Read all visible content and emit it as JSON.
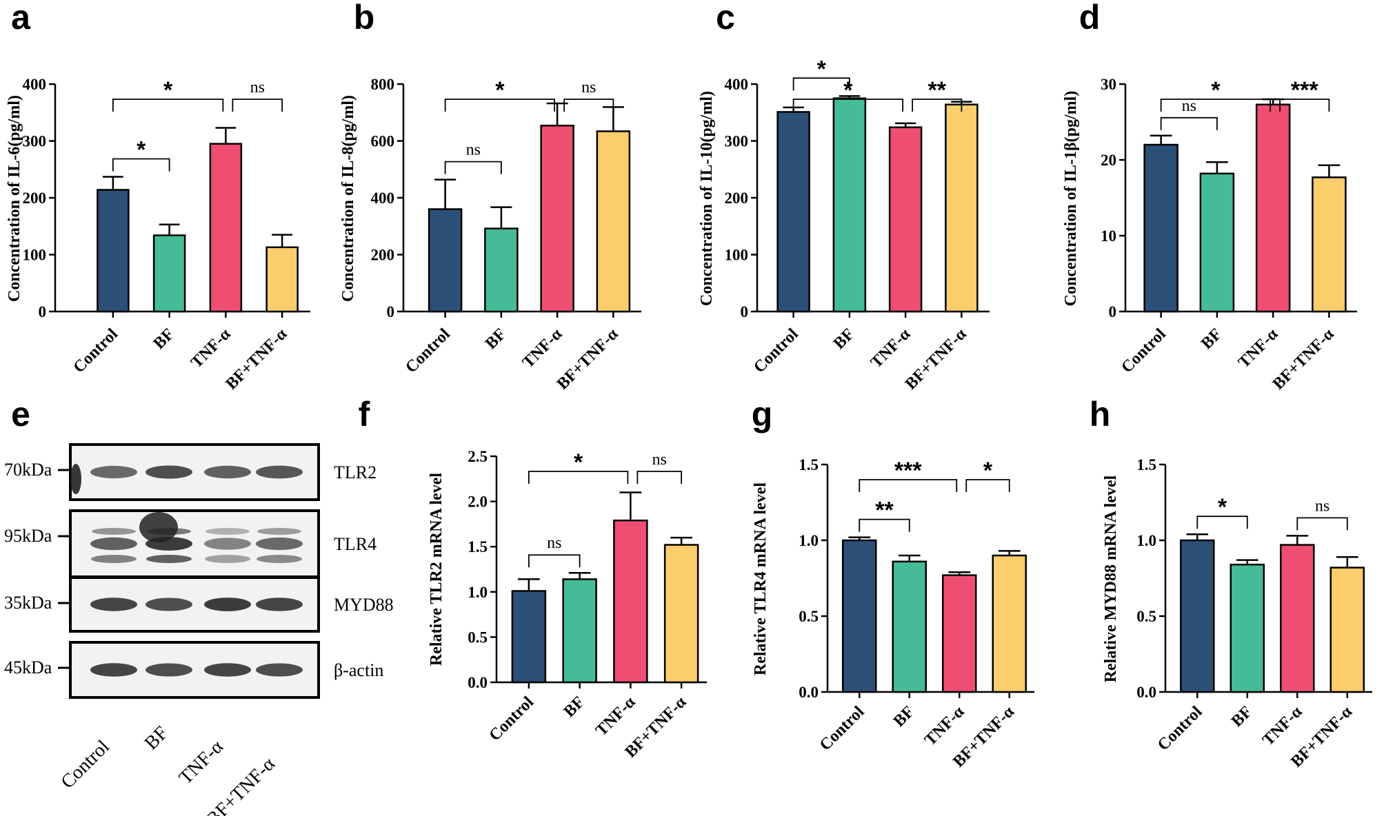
{
  "colors": {
    "Control": "#2c5078",
    "BF": "#45bc97",
    "TNF-α": "#ee4e72",
    "BF+TNF-α": "#fccd6b",
    "axis": "#000000"
  },
  "chart_data": [
    {
      "panel": "a",
      "type": "bar",
      "categories": [
        "Control",
        "BF",
        "TNF-α",
        "BF+TNF-α"
      ],
      "values": [
        214,
        134,
        295,
        113
      ],
      "errors": [
        23,
        19,
        28,
        22
      ],
      "ylabel": "Concentration of IL-6(pg/ml)",
      "ylim": [
        0,
        400
      ],
      "yticks": [
        "0",
        "100",
        "200",
        "300",
        "400"
      ],
      "significance": [
        {
          "from": 0,
          "to": 1,
          "label": "*",
          "level": 0
        },
        {
          "from": 0,
          "to": 2,
          "label": "*",
          "level": 1
        },
        {
          "from": 2,
          "to": 3,
          "label": "ns",
          "level": 1
        }
      ]
    },
    {
      "panel": "b",
      "type": "bar",
      "categories": [
        "Control",
        "BF",
        "TNF-α",
        "BF+TNF-α"
      ],
      "values": [
        360,
        292,
        654,
        634
      ],
      "errors": [
        104,
        75,
        78,
        85
      ],
      "ylabel": "Concentration of IL-8(pg/ml)",
      "ylim": [
        0,
        800
      ],
      "yticks": [
        "0",
        "200",
        "400",
        "600",
        "800"
      ],
      "significance": [
        {
          "from": 0,
          "to": 1,
          "label": "ns",
          "level": 0
        },
        {
          "from": 0,
          "to": 2,
          "label": "*",
          "level": 1
        },
        {
          "from": 2,
          "to": 3,
          "label": "ns",
          "level": 1
        }
      ]
    },
    {
      "panel": "c",
      "type": "bar",
      "categories": [
        "Control",
        "BF",
        "TNF-α",
        "BF+TNF-α"
      ],
      "values": [
        351,
        375,
        324,
        364
      ],
      "errors": [
        8,
        4,
        7,
        5
      ],
      "ylabel": "Concentration of IL-10(pg/ml)",
      "ylim": [
        0,
        400
      ],
      "yticks": [
        "0",
        "100",
        "200",
        "300",
        "400"
      ],
      "significance": [
        {
          "from": 0,
          "to": 1,
          "label": "*",
          "level": 0
        },
        {
          "from": 0,
          "to": 2,
          "label": "*",
          "level": 1
        },
        {
          "from": 2,
          "to": 3,
          "label": "**",
          "level": 1
        }
      ]
    },
    {
      "panel": "d",
      "type": "bar",
      "categories": [
        "Control",
        "BF",
        "TNF-α",
        "BF+TNF-α"
      ],
      "values": [
        22.0,
        18.2,
        27.3,
        17.7
      ],
      "errors": [
        1.2,
        1.5,
        0.7,
        1.6
      ],
      "ylabel": "Concentration of IL-1β(pg/ml)",
      "ylim": [
        0,
        30
      ],
      "yticks": [
        "0",
        "10",
        "20",
        "30"
      ],
      "significance": [
        {
          "from": 0,
          "to": 1,
          "label": "ns",
          "level": 0
        },
        {
          "from": 0,
          "to": 2,
          "label": "*",
          "level": 1
        },
        {
          "from": 2,
          "to": 3,
          "label": "***",
          "level": 1
        }
      ]
    },
    {
      "panel": "f",
      "type": "bar",
      "categories": [
        "Control",
        "BF",
        "TNF-α",
        "BF+TNF-α"
      ],
      "values": [
        1.01,
        1.14,
        1.79,
        1.52
      ],
      "errors": [
        0.13,
        0.07,
        0.31,
        0.08
      ],
      "ylabel": "Relative TLR2 mRNA level",
      "ylim": [
        0,
        2.5
      ],
      "yticks": [
        "0.0",
        "0.5",
        "1.0",
        "1.5",
        "2.0",
        "2.5"
      ],
      "significance": [
        {
          "from": 0,
          "to": 1,
          "label": "ns",
          "level": 0
        },
        {
          "from": 0,
          "to": 2,
          "label": "*",
          "level": 1
        },
        {
          "from": 2,
          "to": 3,
          "label": "ns",
          "level": 1
        }
      ]
    },
    {
      "panel": "g",
      "type": "bar",
      "categories": [
        "Control",
        "BF",
        "TNF-α",
        "BF+TNF-α"
      ],
      "values": [
        1.0,
        0.86,
        0.77,
        0.9
      ],
      "errors": [
        0.02,
        0.04,
        0.02,
        0.03
      ],
      "ylabel": "Relative TLR4 mRNA level",
      "ylim": [
        0,
        1.5
      ],
      "yticks": [
        "0.0",
        "0.5",
        "1.0",
        "1.5"
      ],
      "significance": [
        {
          "from": 0,
          "to": 1,
          "label": "**",
          "level": 0
        },
        {
          "from": 0,
          "to": 2,
          "label": "***",
          "level": 1
        },
        {
          "from": 2,
          "to": 3,
          "label": "*",
          "level": 1
        }
      ]
    },
    {
      "panel": "h",
      "type": "bar",
      "categories": [
        "Control",
        "BF",
        "TNF-α",
        "BF+TNF-α"
      ],
      "values": [
        1.0,
        0.84,
        0.97,
        0.82
      ],
      "errors": [
        0.04,
        0.03,
        0.06,
        0.07
      ],
      "ylabel": "Relative MYD88 mRNA level",
      "ylim": [
        0,
        1.5
      ],
      "yticks": [
        "0.0",
        "0.5",
        "1.0",
        "1.5"
      ],
      "significance": [
        {
          "from": 0,
          "to": 1,
          "label": "*",
          "level": 0
        },
        {
          "from": 2,
          "to": 3,
          "label": "ns",
          "level": 0
        }
      ]
    }
  ],
  "western_blot": {
    "panel": "e",
    "rows": [
      {
        "protein": "TLR2",
        "marker": "70kDa",
        "intensities": [
          0.7,
          0.85,
          0.75,
          0.8
        ]
      },
      {
        "protein": "TLR4",
        "marker": "95kDa",
        "intensities": [
          0.75,
          0.95,
          0.55,
          0.7
        ]
      },
      {
        "protein": "MYD88",
        "marker": "35kDa",
        "intensities": [
          0.9,
          0.85,
          0.95,
          0.9
        ]
      },
      {
        "protein": "β-actin",
        "marker": "45kDa",
        "intensities": [
          0.9,
          0.85,
          0.9,
          0.85
        ]
      }
    ],
    "categories": [
      "Control",
      "BF",
      "TNF-α",
      "BF+TNF-α"
    ]
  }
}
